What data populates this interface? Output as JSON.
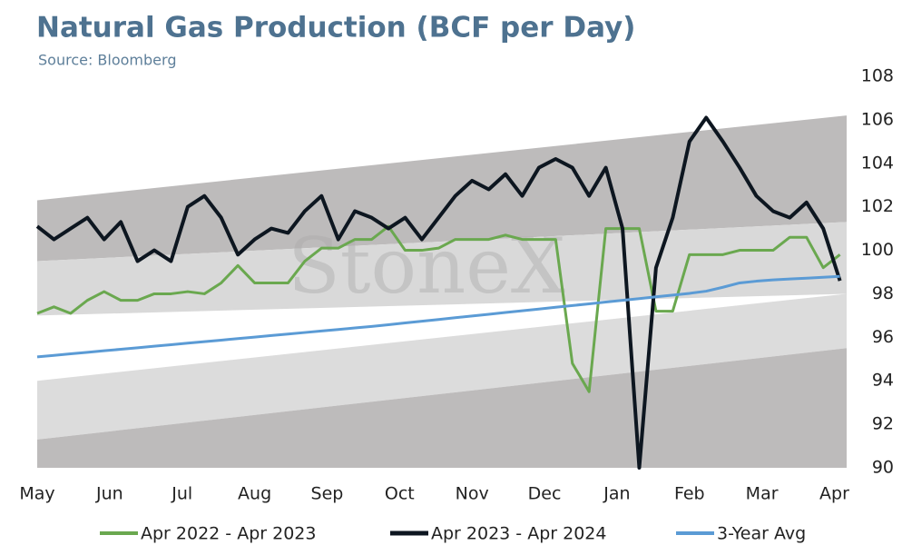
{
  "chart_data": {
    "type": "line",
    "title": "Natural Gas Production (BCF per Day)",
    "subtitle": "Source: Bloomberg",
    "watermark": "StoneX",
    "x": [
      0,
      1,
      2,
      3,
      4,
      5,
      6,
      7,
      8,
      9,
      10,
      11,
      12,
      13,
      14,
      15,
      16,
      17,
      18,
      19,
      20,
      21,
      22,
      23,
      24,
      25,
      26,
      27,
      28,
      29,
      30,
      31,
      32,
      33,
      34,
      35,
      36,
      37,
      38,
      39,
      40,
      41,
      42,
      43,
      44,
      45,
      46,
      47,
      48
    ],
    "xlim": [
      0,
      48.4
    ],
    "xticks": [
      {
        "value": 0,
        "label": "May"
      },
      {
        "value": 4.333,
        "label": "Jun"
      },
      {
        "value": 8.667,
        "label": "Jul"
      },
      {
        "value": 13,
        "label": "Aug"
      },
      {
        "value": 17.333,
        "label": "Sep"
      },
      {
        "value": 21.667,
        "label": "Oct"
      },
      {
        "value": 26,
        "label": "Nov"
      },
      {
        "value": 30.333,
        "label": "Dec"
      },
      {
        "value": 34.667,
        "label": "Jan"
      },
      {
        "value": 39,
        "label": "Feb"
      },
      {
        "value": 43.333,
        "label": "Mar"
      },
      {
        "value": 47.667,
        "label": "Apr"
      }
    ],
    "ylim": [
      90,
      108
    ],
    "yticks": [
      90,
      92,
      94,
      96,
      98,
      100,
      102,
      104,
      106,
      108
    ],
    "grid": false,
    "legend": "bottom",
    "bands": [
      {
        "color": "#bdbbbb",
        "x": [
          0,
          48.4
        ],
        "upper": [
          102.3,
          106.2
        ],
        "lower": [
          99.5,
          101.3
        ]
      },
      {
        "color": "#d9d9d9",
        "x": [
          0,
          48.4
        ],
        "upper": [
          99.5,
          101.3
        ],
        "lower": [
          97.0,
          98.0
        ]
      },
      {
        "color": "#dcdcdc",
        "x": [
          0,
          48.4
        ],
        "upper": [
          94.0,
          98.0
        ],
        "lower": [
          91.3,
          95.5
        ]
      },
      {
        "color": "#bdbbbb",
        "x": [
          0,
          48.4
        ],
        "upper": [
          91.3,
          95.5
        ],
        "lower": [
          90,
          90
        ]
      }
    ],
    "series": [
      {
        "name": "Apr 2022 - Apr 2023",
        "color": "#6aa84f",
        "width": 3,
        "values": [
          97.1,
          97.4,
          97.1,
          97.7,
          98.1,
          97.7,
          97.7,
          98.0,
          98.0,
          98.1,
          98.0,
          98.5,
          99.3,
          98.5,
          98.5,
          98.5,
          99.5,
          100.1,
          100.1,
          100.5,
          100.5,
          101.1,
          100.0,
          100.0,
          100.1,
          100.5,
          100.5,
          100.5,
          100.7,
          100.5,
          100.5,
          100.5,
          94.8,
          93.5,
          101.0,
          101.0,
          101.0,
          97.2,
          97.2,
          99.8,
          99.8,
          99.8,
          100.0,
          100.0,
          100.0,
          100.6,
          100.6,
          99.2,
          99.8
        ]
      },
      {
        "name": "Apr 2023 - Apr 2024",
        "color": "#0d1620",
        "width": 4,
        "values": [
          101.1,
          100.5,
          101.0,
          101.5,
          100.5,
          101.3,
          99.5,
          100.0,
          99.5,
          102.0,
          102.5,
          101.5,
          99.8,
          100.5,
          101.0,
          100.8,
          101.8,
          102.5,
          100.5,
          101.8,
          101.5,
          101.0,
          101.5,
          100.5,
          101.5,
          102.5,
          103.2,
          102.8,
          103.5,
          102.5,
          103.8,
          104.2,
          103.8,
          102.5,
          103.8,
          101.0,
          90.0,
          99.2,
          101.5,
          105.0,
          106.1,
          105.0,
          103.8,
          102.5,
          101.8,
          101.5,
          102.2,
          101.0,
          98.6
        ]
      },
      {
        "name": "3-Year Avg",
        "color": "#5b9bd5",
        "width": 3,
        "values": [
          95.1,
          95.17,
          95.24,
          95.31,
          95.38,
          95.45,
          95.52,
          95.59,
          95.66,
          95.73,
          95.8,
          95.87,
          95.94,
          96.01,
          96.08,
          96.15,
          96.22,
          96.29,
          96.36,
          96.43,
          96.5,
          96.58,
          96.66,
          96.74,
          96.82,
          96.9,
          96.98,
          97.06,
          97.14,
          97.22,
          97.3,
          97.38,
          97.46,
          97.54,
          97.62,
          97.7,
          97.78,
          97.86,
          97.94,
          98.02,
          98.12,
          98.3,
          98.5,
          98.58,
          98.64,
          98.68,
          98.72,
          98.76,
          98.8
        ]
      }
    ]
  }
}
